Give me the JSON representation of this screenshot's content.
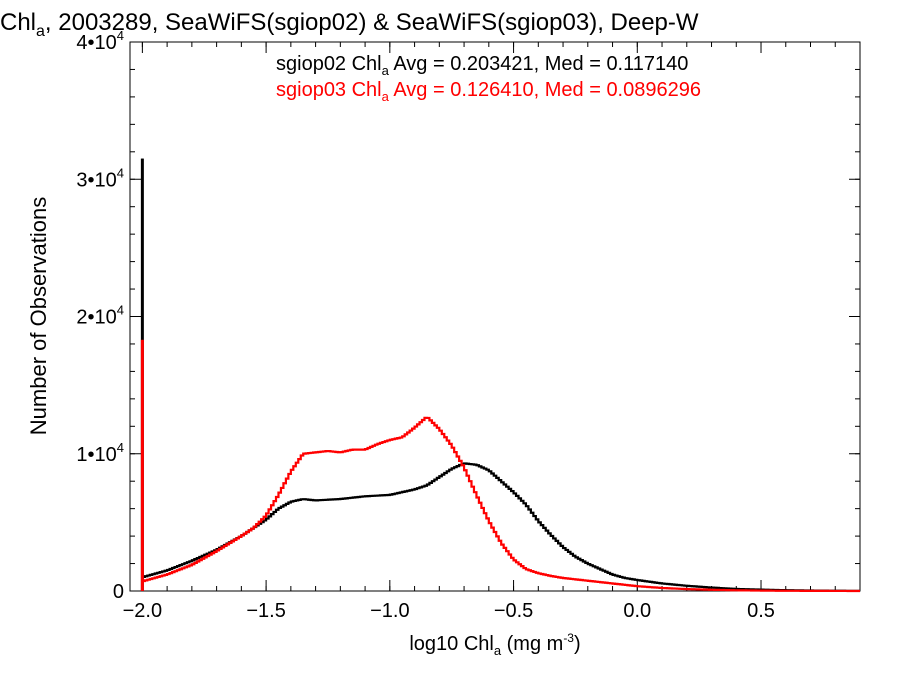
{
  "chart_data": {
    "type": "line",
    "title": {
      "prefix": "Chl",
      "sub": "a",
      "rest": ", 2003289, SeaWiFS(sgiop02) & SeaWiFS(sgiop03), Deep-W"
    },
    "xlabel": {
      "prefix": "log10 Chl",
      "sub": "a",
      "unit": " (mg m",
      "sup": "-3",
      "close": ")"
    },
    "ylabel": "Number of Observations",
    "xlim": [
      -2.05,
      0.9
    ],
    "ylim": [
      0,
      40000
    ],
    "x_ticks": [
      {
        "value": -2.0,
        "label": "−2.0"
      },
      {
        "value": -1.5,
        "label": "−1.5"
      },
      {
        "value": -1.0,
        "label": "−1.0"
      },
      {
        "value": -0.5,
        "label": "−0.5"
      },
      {
        "value": 0.0,
        "label": "0.0"
      },
      {
        "value": 0.5,
        "label": "0.5"
      }
    ],
    "y_ticks": [
      {
        "value": 0,
        "mantissa": "0",
        "exponent": ""
      },
      {
        "value": 10000,
        "mantissa": "1•10",
        "exponent": "4"
      },
      {
        "value": 20000,
        "mantissa": "2•10",
        "exponent": "4"
      },
      {
        "value": 30000,
        "mantissa": "3•10",
        "exponent": "4"
      },
      {
        "value": 40000,
        "mantissa": "4•10",
        "exponent": "4"
      }
    ],
    "grid": false,
    "legend_placement": "top-right",
    "series": [
      {
        "name": "sgiop02",
        "color": "#000000",
        "legend": {
          "name": "sgiop02 Chl",
          "sub": "a",
          "stats": " Avg = 0.203421, Med = 0.117140"
        },
        "spike": {
          "x": -2.0,
          "y": 31500
        },
        "x": [
          -2.0,
          -1.9,
          -1.8,
          -1.7,
          -1.6,
          -1.5,
          -1.45,
          -1.4,
          -1.35,
          -1.3,
          -1.2,
          -1.1,
          -1.0,
          -0.95,
          -0.9,
          -0.85,
          -0.8,
          -0.75,
          -0.7,
          -0.65,
          -0.6,
          -0.55,
          -0.5,
          -0.45,
          -0.4,
          -0.35,
          -0.3,
          -0.25,
          -0.2,
          -0.15,
          -0.1,
          -0.05,
          0.0,
          0.1,
          0.2,
          0.3,
          0.4,
          0.5,
          0.6,
          0.7,
          0.8,
          0.9
        ],
        "y": [
          1000,
          1500,
          2200,
          3000,
          4000,
          5200,
          6000,
          6500,
          6700,
          6600,
          6700,
          6900,
          7000,
          7200,
          7400,
          7700,
          8300,
          8900,
          9300,
          9200,
          8800,
          8000,
          7200,
          6300,
          5100,
          4100,
          3200,
          2500,
          2000,
          1600,
          1200,
          950,
          800,
          550,
          380,
          250,
          150,
          100,
          60,
          35,
          20,
          10
        ]
      },
      {
        "name": "sgiop03",
        "color": "#ff0000",
        "legend": {
          "name": "sgiop03 Chl",
          "sub": "a",
          "stats": " Avg = 0.126410, Med = 0.0896296"
        },
        "spike": {
          "x": -2.0,
          "y": 18300
        },
        "x": [
          -2.0,
          -1.9,
          -1.8,
          -1.7,
          -1.6,
          -1.55,
          -1.5,
          -1.45,
          -1.4,
          -1.35,
          -1.3,
          -1.25,
          -1.2,
          -1.15,
          -1.1,
          -1.05,
          -1.0,
          -0.95,
          -0.9,
          -0.85,
          -0.8,
          -0.75,
          -0.7,
          -0.65,
          -0.6,
          -0.55,
          -0.5,
          -0.45,
          -0.4,
          -0.35,
          -0.3,
          -0.25,
          -0.2,
          -0.1,
          0.0,
          0.1,
          0.2,
          0.3,
          0.4,
          0.5,
          0.6,
          0.7,
          0.8,
          0.9
        ],
        "y": [
          700,
          1200,
          1900,
          2900,
          4000,
          4600,
          5500,
          7000,
          8700,
          10000,
          10100,
          10200,
          10100,
          10300,
          10300,
          10700,
          11000,
          11200,
          11900,
          12700,
          11800,
          10600,
          9000,
          7000,
          5100,
          3500,
          2300,
          1600,
          1300,
          1100,
          950,
          850,
          750,
          550,
          350,
          220,
          140,
          90,
          50,
          30,
          15,
          10,
          5,
          0
        ]
      }
    ]
  }
}
